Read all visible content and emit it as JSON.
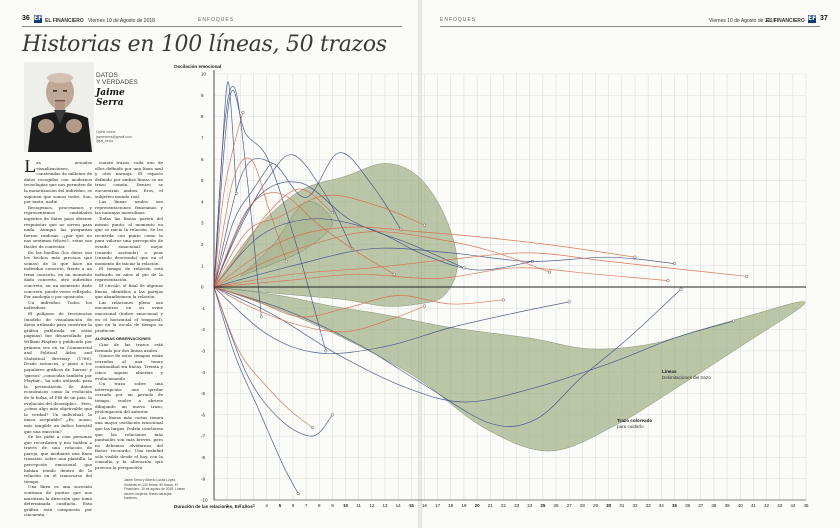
{
  "left_page": {
    "page_number": "36",
    "section_badge": "EF",
    "masthead": "EL FINANCIERO",
    "date_line": "Viernes 10 de Agosto de 2018",
    "section": "ENFOQUES"
  },
  "right_page": {
    "page_number": "37",
    "section_badge": "EF",
    "masthead": "EL FINANCIERO",
    "date_line": "Viernes 10 de Agosto de 2018",
    "section": "ENFOQUES"
  },
  "article": {
    "headline": "Historias en 100 líneas, 50 trazos",
    "kicker_line1": "DATOS",
    "kicker_line2": "Y VERDADES",
    "author_first": "Jaime",
    "author_last": "Serra",
    "contact_line1": "Opine usted:",
    "contact_line2": "jaimeserra@gmail.com",
    "contact_line3": "@jai_serra",
    "col1": [
      "as actuales visualizaciones, construidas de millones de datos recogidos con modernos tecnologías que nos permiten de la monetización del individuo, se suponen que somos todos. Son, por tanto, nadie.",
      "Recogemos, procesamos y representamos cantidades ingentes de datos para obtener respuestas que no sirven para nada. Aunque las preguntas fueran ruidosas –¿por qué no nos sentimos felices?– estas son fáciles de contestar.",
      "En las huellas (los datos son los hechos más precisos que somos) de lo que hace un individuo concreto, frente a un tema concreto, en un momento dado concreto, otro individuo concreto, en un momento dado concreto, puede verse reflejado. Por analogía o por oposición.",
      "Un individuo. Todos los individuos.",
      "El polígono de frecuencias (modelo de visualización de datos utilizado para construir la gráfica publicada en estas páginas) fue desarrollado por William Playfair y publicado por primera vez en su Commercial and Political Atlas and Statistical Breviary (1786). Desde entonces, y junto a los populares gráficos de 'barras' y 'quesos' –conocidas también por Playfair–, ha sido utilizado para la presentación de datos económicos como la evolución de la bolsa, el PIB de un país, la evolución del desempleo... Pero, ¿cómo algo más objetivable que la verdad? Un individual, la única aceptable? ¿Es, acaso, más tangible un índice bursátil que una emoción?",
      "Se les pidió a cien personas que recordasen y nos hablen a través de una relación de pareja, que mediante una línea trazasen, sobre una plantilla, la percepción emocional que habían tenido dentro de la relación en el transcurso del tiempo.",
      "Una línea es una sucesión continua de puntos que nos muestran la dirección que toma determinada conducta. Esta gráfica está compuesta por cincuenta"
    ],
    "col2": [
      "cuenta trazos, cada uno de ellos definido por una línea azul y otra naranja. El espacio definido por ambas líneas se un trazo común. Dentro se encuentran ambos: Eros, el subjetivo mundo real.",
      "Las líneas azules son representaciones femeninas y las naranjas masculinas.",
      "Todas las líneas parten del mismo punto: el momento en que se inicia la relación. Se les recuerda con punto como la para valorar una percepción de estado emocional: mejor (cuando ascienda) o peor (cuando descienda) que en el momento de iniciar la relación.",
      "El tiempo de relación está indicado en años al pie de la representación.",
      "El círculo, el final de algunas líneas, identifica a las parejas que abandonaron la relación.",
      "Las relaciones pleno son encuentros en su ovine emocional (índice emocional y en el horizontal el temporal), que en la escala de tiempo se producen."
    ],
    "col2_subhead": "ALGUNAS OBSERVACIONES",
    "col2_more": [
      "Cine de las trazos está formado por dos líneas azules.",
      "Quince de estos tiempos están cerrados al una tenue continuidad sin líneas. Treinta y cinco siguen abiertas y evolucionando.",
      "Un trazo sobre una interrupción: uno quedar cerrado por un periodo de tiempo, vuelve a abrirse dibujando un nuevo trazo, prolongación del anterior.",
      "Las líneas más cortas tienen una mayor oscilación emocional que las largas. Podría concluirse que las relaciones más puntuales son más breves, pero no debemos olvidarnos del factor 'recuerdo'. Una realidad sólo visible desde el hoy, con la consulta y la alteración que provoca la perspectiva."
    ],
    "source_text": "Jaime Serra y Alberto Lucas López, Historias en 100 líneas, 50 trazos. El Financiero, 10 de agosto de 2018. Líneas azules: mujeres; líneas naranjas: hombres."
  },
  "chart_data": {
    "type": "line",
    "ylabel": "Oscilación emocional",
    "xlabel": "Duración de las relaciones, En años",
    "ylim": [
      -10,
      10
    ],
    "y_ticks": [
      10,
      9,
      8,
      7,
      6,
      5,
      4,
      3,
      2,
      1,
      0,
      -1,
      -2,
      -3,
      -4,
      -5,
      -6,
      -7,
      -8,
      -9,
      -10
    ],
    "xlim": [
      0,
      45
    ],
    "x_ticks": [
      1,
      2,
      3,
      4,
      5,
      6,
      7,
      8,
      9,
      10,
      11,
      12,
      13,
      14,
      15,
      16,
      17,
      18,
      19,
      20,
      21,
      22,
      23,
      24,
      25,
      26,
      27,
      28,
      29,
      30,
      31,
      32,
      33,
      34,
      35,
      36,
      37,
      38,
      39,
      40,
      41,
      42,
      43,
      44,
      45
    ],
    "x_bold_ticks": [
      5,
      10,
      15,
      20,
      25,
      30,
      35
    ],
    "colors": {
      "women": "#3d4f8c",
      "men": "#d9694a",
      "area": "#9fae84",
      "grid": "#d8d8d8"
    },
    "annotations": [
      {
        "title": "Líneas",
        "text": "Delimitaciones del trazo"
      },
      {
        "title": "Trazo coloreado",
        "text": "para cuidarlo"
      }
    ],
    "series": [
      {
        "group": "women",
        "x": [
          0,
          0.8,
          1.6,
          2.5,
          3.6
        ],
        "y": [
          0,
          7.6,
          9.3,
          5.2,
          -1.4
        ]
      },
      {
        "group": "women",
        "x": [
          0,
          1.2,
          2.4,
          4.1,
          6.2,
          8.5
        ],
        "y": [
          0,
          8.9,
          7.2,
          6.0,
          2.1,
          -3.0
        ]
      },
      {
        "group": "women",
        "x": [
          0,
          2.2,
          4.5,
          7.0,
          9.5,
          12.0,
          14.2
        ],
        "y": [
          0,
          5.4,
          5.8,
          4.2,
          6.3,
          4.8,
          2.7
        ]
      },
      {
        "group": "women",
        "x": [
          0,
          3.5,
          7.5,
          12.0,
          16.0,
          20.0,
          24.2
        ],
        "y": [
          0,
          2.4,
          3.2,
          2.7,
          1.5,
          0.8,
          1.2
        ]
      },
      {
        "group": "women",
        "x": [
          0,
          4.0,
          8.0,
          13.0,
          18.0,
          23.0,
          27.0
        ],
        "y": [
          0,
          -2.2,
          -3.1,
          -2.8,
          -1.9,
          -1.2,
          -0.7
        ]
      },
      {
        "group": "women",
        "x": [
          0,
          5.5,
          11.0,
          16.0,
          21.0,
          24.5,
          28.0,
          31.5,
          35.5
        ],
        "y": [
          0,
          -1.1,
          -2.7,
          -4.6,
          -6.4,
          -6.2,
          -4.2,
          -2.4,
          -0.1
        ]
      },
      {
        "group": "women",
        "x": [
          0,
          1.6,
          3.5,
          5.2,
          6.4
        ],
        "y": [
          0,
          -3.2,
          -5.9,
          -8.3,
          -9.7
        ]
      },
      {
        "group": "women",
        "x": [
          0,
          2.5,
          5.0,
          7.5,
          9.0
        ],
        "y": [
          0,
          -4.1,
          -6.2,
          -7.0,
          -6.0
        ]
      },
      {
        "group": "women",
        "x": [
          0,
          3.0,
          6.5,
          10.5,
          15.0,
          19.0
        ],
        "y": [
          0,
          4.0,
          4.9,
          3.1,
          2.0,
          0.9
        ]
      },
      {
        "group": "women",
        "x": [
          0,
          6.0,
          12.0,
          18.0,
          24.0,
          30.0,
          35.0
        ],
        "y": [
          0,
          1.0,
          1.8,
          1.6,
          1.2,
          1.4,
          1.1
        ]
      },
      {
        "group": "women",
        "x": [
          0,
          0.6,
          1.1,
          1.7
        ],
        "y": [
          0,
          6.2,
          9.6,
          4.4
        ]
      },
      {
        "group": "women",
        "x": [
          0,
          2.0,
          4.0,
          6.0,
          8.5,
          10.5
        ],
        "y": [
          0,
          2.8,
          5.0,
          6.2,
          4.3,
          1.8
        ]
      },
      {
        "group": "women",
        "x": [
          0,
          4.5,
          9.5,
          14.5,
          19.0,
          24.0,
          30.0,
          35.0,
          39.5
        ],
        "y": [
          0,
          -1.3,
          -3.2,
          -4.7,
          -5.4,
          -4.8,
          -3.6,
          -2.4,
          -1.6
        ]
      },
      {
        "group": "women",
        "x": [
          0,
          1.5,
          3.0,
          4.3
        ],
        "y": [
          0,
          3.1,
          4.6,
          5.8
        ]
      },
      {
        "group": "men",
        "x": [
          0,
          1.4,
          2.8,
          4.2,
          5.5
        ],
        "y": [
          0,
          4.9,
          6.0,
          3.6,
          1.2
        ]
      },
      {
        "group": "men",
        "x": [
          0,
          2.5,
          5.0,
          8.0,
          11.0,
          13.7
        ],
        "y": [
          0,
          3.6,
          4.4,
          2.9,
          1.6,
          0.6
        ]
      },
      {
        "group": "men",
        "x": [
          0,
          4.0,
          8.0,
          12.0,
          16.5,
          21.0,
          25.5
        ],
        "y": [
          0,
          1.2,
          2.1,
          2.6,
          2.3,
          1.7,
          0.7
        ]
      },
      {
        "group": "men",
        "x": [
          0,
          6.0,
          12.0,
          18.0,
          24.0,
          30.0,
          36.0,
          40.5
        ],
        "y": [
          0,
          0.6,
          0.9,
          1.3,
          1.6,
          1.2,
          0.8,
          0.5
        ]
      },
      {
        "group": "men",
        "x": [
          0,
          3.0,
          6.5,
          10.0,
          13.5,
          16.0
        ],
        "y": [
          0,
          -1.0,
          -1.8,
          -2.1,
          -1.5,
          -0.9
        ]
      },
      {
        "group": "men",
        "x": [
          0,
          1.9,
          3.9,
          5.8,
          7.5
        ],
        "y": [
          0,
          -3.0,
          -4.6,
          -5.8,
          -6.6
        ]
      },
      {
        "group": "men",
        "x": [
          0,
          2.5,
          5.0,
          8.5,
          12.5,
          16.0
        ],
        "y": [
          0,
          2.6,
          3.3,
          4.3,
          3.8,
          2.9
        ]
      },
      {
        "group": "men",
        "x": [
          0,
          5.0,
          10.0,
          15.5,
          21.0,
          26.5,
          32.0
        ],
        "y": [
          0,
          2.1,
          2.8,
          2.6,
          2.3,
          1.9,
          1.4
        ]
      },
      {
        "group": "men",
        "x": [
          0,
          0.7,
          1.5,
          2.2
        ],
        "y": [
          0,
          4.2,
          6.6,
          8.2
        ]
      },
      {
        "group": "men",
        "x": [
          0,
          3.0,
          6.5,
          10.0,
          14.0,
          18.0,
          22.0
        ],
        "y": [
          0,
          -0.6,
          -1.4,
          -1.0,
          -0.4,
          -0.8,
          -0.6
        ]
      },
      {
        "group": "men",
        "x": [
          0,
          2.0,
          4.0,
          6.5,
          9.0
        ],
        "y": [
          0,
          1.6,
          3.4,
          4.6,
          3.5
        ]
      },
      {
        "group": "men",
        "x": [
          0,
          5.5,
          11.0,
          17.0,
          23.0,
          29.0,
          34.5
        ],
        "y": [
          0,
          0.3,
          0.6,
          0.4,
          0.9,
          0.6,
          0.3
        ]
      }
    ],
    "areas": [
      {
        "x": [
          0,
          3.0,
          6.5,
          10.0,
          13.0,
          15.5,
          17.5,
          18.5,
          17.5,
          15.5,
          13.0,
          10.0,
          6.5,
          3.0,
          0
        ],
        "y": [
          0,
          2.6,
          4.5,
          5.2,
          5.8,
          5.2,
          3.4,
          1.1,
          -0.4,
          -0.8,
          -0.9,
          -0.6,
          -0.4,
          -0.2,
          0
        ]
      },
      {
        "x": [
          0,
          5.0,
          9.0,
          13.0,
          18.0,
          24.0,
          28.5,
          33.0,
          37.0,
          41.5,
          44.5,
          44.5,
          40.5,
          35.5,
          30.5,
          25.5,
          20.5,
          15.5,
          10.5,
          5.5,
          0
        ],
        "y": [
          0,
          -0.4,
          -0.9,
          -1.3,
          -1.9,
          -2.4,
          -2.9,
          -2.7,
          -2.0,
          -1.2,
          -0.7,
          -1.0,
          -2.6,
          -4.6,
          -6.5,
          -7.7,
          -6.6,
          -4.3,
          -2.6,
          -1.2,
          0
        ]
      },
      {
        "x": [
          2.0,
          4.5,
          7.0,
          9.0,
          7.0,
          4.5,
          2.0
        ],
        "y": [
          0.5,
          2.0,
          4.0,
          3.0,
          1.8,
          1.1,
          0.5
        ]
      }
    ]
  }
}
